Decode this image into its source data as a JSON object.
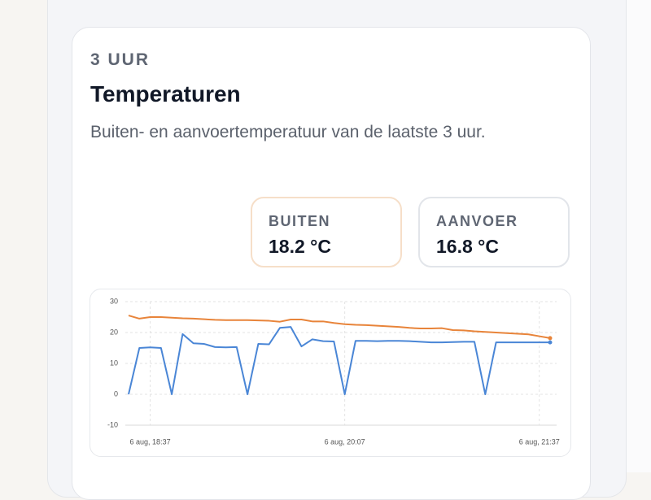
{
  "header": {
    "eyebrow": "3 UUR",
    "title": "Temperaturen",
    "description": "Buiten- en aanvoertemperatuur van de laatste 3 uur."
  },
  "stats": [
    {
      "label": "BUITEN",
      "value": "18.2 °C"
    },
    {
      "label": "AANVOER",
      "value": "16.8 °C"
    }
  ],
  "chart_data": {
    "type": "line",
    "categories": [
      null,
      null,
      "6 aug, 18:37",
      null,
      null,
      null,
      null,
      null,
      null,
      null,
      null,
      null,
      null,
      null,
      null,
      null,
      null,
      null,
      null,
      null,
      "6 aug, 20:07",
      null,
      null,
      null,
      null,
      null,
      null,
      null,
      null,
      null,
      null,
      null,
      null,
      null,
      null,
      null,
      null,
      null,
      "6 aug, 21:37",
      null
    ],
    "series": [
      {
        "color": "#e8843a",
        "values": [
          25.5,
          24.5,
          25,
          25,
          24.8,
          24.6,
          24.5,
          24.3,
          24.1,
          24,
          24,
          24,
          23.9,
          23.8,
          23.5,
          24.2,
          24.2,
          23.6,
          23.6,
          23.1,
          22.7,
          22.5,
          22.4,
          22.2,
          22,
          21.8,
          21.5,
          21.3,
          21.3,
          21.4,
          20.8,
          20.7,
          20.4,
          20.2,
          20,
          19.8,
          19.6,
          19.4,
          18.8,
          18.2
        ]
      },
      {
        "color": "#4a86d6",
        "values": [
          0,
          15,
          15.2,
          15,
          0,
          19.5,
          16.5,
          16.3,
          15.3,
          15.2,
          15.3,
          0,
          16.3,
          16.2,
          21.5,
          21.8,
          15.5,
          17.8,
          17.2,
          17.1,
          0,
          17.3,
          17.3,
          17.2,
          17.3,
          17.3,
          17.2,
          17,
          16.8,
          16.8,
          16.9,
          17,
          17,
          0,
          16.8,
          16.8,
          16.8,
          16.8,
          16.8,
          16.8
        ]
      }
    ],
    "ylim": [
      -10,
      30
    ],
    "yticks": [
      -10,
      0,
      10,
      20,
      30
    ],
    "grid": true
  }
}
